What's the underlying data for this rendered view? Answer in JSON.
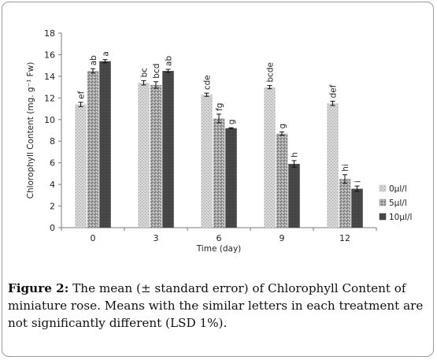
{
  "chart_data": {
    "type": "bar",
    "xlabel": "Time (day)",
    "ylabel": "Chlorophyll Content (mg. g⁻¹ Fw)",
    "ylim": [
      0,
      18
    ],
    "yticks": [
      0,
      2,
      4,
      6,
      8,
      10,
      12,
      14,
      16,
      18
    ],
    "categories": [
      "0",
      "3",
      "6",
      "9",
      "12"
    ],
    "series": [
      {
        "name": "0µl/l",
        "color": "#bdbdbd",
        "values": [
          11.4,
          13.4,
          12.3,
          13.0,
          11.5
        ],
        "errors": [
          0.2,
          0.2,
          0.15,
          0.15,
          0.2
        ],
        "letters": [
          "ef",
          "bc",
          "cde",
          "bcde",
          "def"
        ]
      },
      {
        "name": "5µl/l",
        "color": "#8f8f8f",
        "values": [
          14.5,
          13.2,
          10.1,
          8.7,
          4.5
        ],
        "errors": [
          0.2,
          0.3,
          0.4,
          0.15,
          0.4
        ],
        "letters": [
          "ab",
          "bcd",
          "fg",
          "g",
          "hi"
        ]
      },
      {
        "name": "10µl/l",
        "color": "#3f3f3f",
        "values": [
          15.4,
          14.5,
          9.2,
          5.9,
          3.6
        ],
        "errors": [
          0.15,
          0.15,
          0.05,
          0.3,
          0.25
        ],
        "letters": [
          "a",
          "ab",
          "g",
          "h",
          "i"
        ]
      }
    ],
    "legend_position": "right",
    "grid": false
  },
  "caption": {
    "label": "Figure 2:",
    "text": " The mean (± standard error) of Chlorophyll Content of miniature rose. Means with the similar letters in each treatment are not significantly different (LSD 1%)."
  }
}
